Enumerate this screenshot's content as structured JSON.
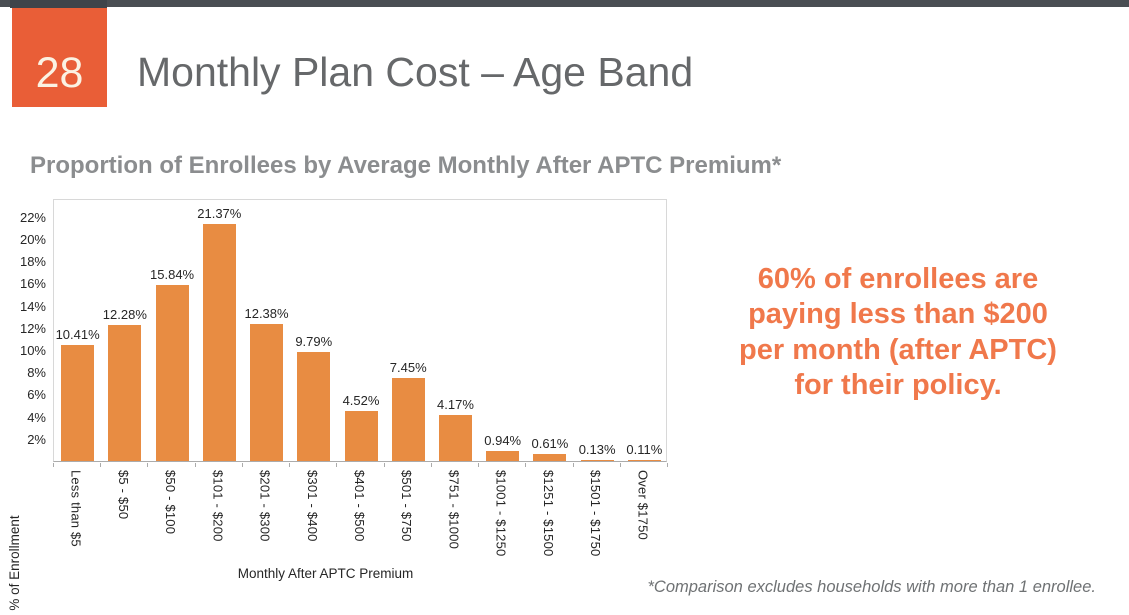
{
  "slide": {
    "number": "28",
    "title": "Monthly Plan Cost – Age Band",
    "subtitle": "Proportion of Enrollees by Average Monthly After APTC Premium*",
    "callout_lines": [
      "60% of enrollees are",
      "paying less than $200",
      "per month (after APTC)",
      "for their policy."
    ],
    "footnote": "*Comparison excludes households with more than 1 enrollee."
  },
  "colors": {
    "top_bar": "#4A4E53",
    "slide_number_bg": "#E95E37",
    "slide_number_text": "#FBF2E2",
    "title_text": "#66686A",
    "subtitle_text": "#8B8D8F",
    "bar_fill": "#E88C42",
    "callout_text": "#F0784B",
    "footnote_text": "#6F7274"
  },
  "chart_data": {
    "type": "bar",
    "title": "",
    "categories": [
      "Less than $5",
      "$5 - $50",
      "$50 - $100",
      "$101 - $200",
      "$201 - $300",
      "$301 - $400",
      "$401 - $500",
      "$501 - $750",
      "$751 - $1000",
      "$1001 - $1250",
      "$1251 - $1500",
      "$1501 - $1750",
      "Over $1750"
    ],
    "values": [
      10.41,
      12.28,
      15.84,
      21.37,
      12.38,
      9.79,
      4.52,
      7.45,
      4.17,
      0.94,
      0.61,
      0.13,
      0.11
    ],
    "value_labels": [
      "10.41%",
      "12.28%",
      "15.84%",
      "21.37%",
      "12.38%",
      "9.79%",
      "4.52%",
      "7.45%",
      "4.17%",
      "0.94%",
      "0.61%",
      "0.13%",
      "0.11%"
    ],
    "xlabel": "Monthly After APTC Premium",
    "ylabel": "% of Enrollment",
    "ylim": [
      0,
      23.7
    ],
    "ytick_step": 2,
    "yticks": [
      "2%",
      "4%",
      "6%",
      "8%",
      "10%",
      "12%",
      "14%",
      "16%",
      "18%",
      "20%",
      "22%"
    ],
    "grid": false,
    "legend": false,
    "bar_color": "#E88C42"
  }
}
